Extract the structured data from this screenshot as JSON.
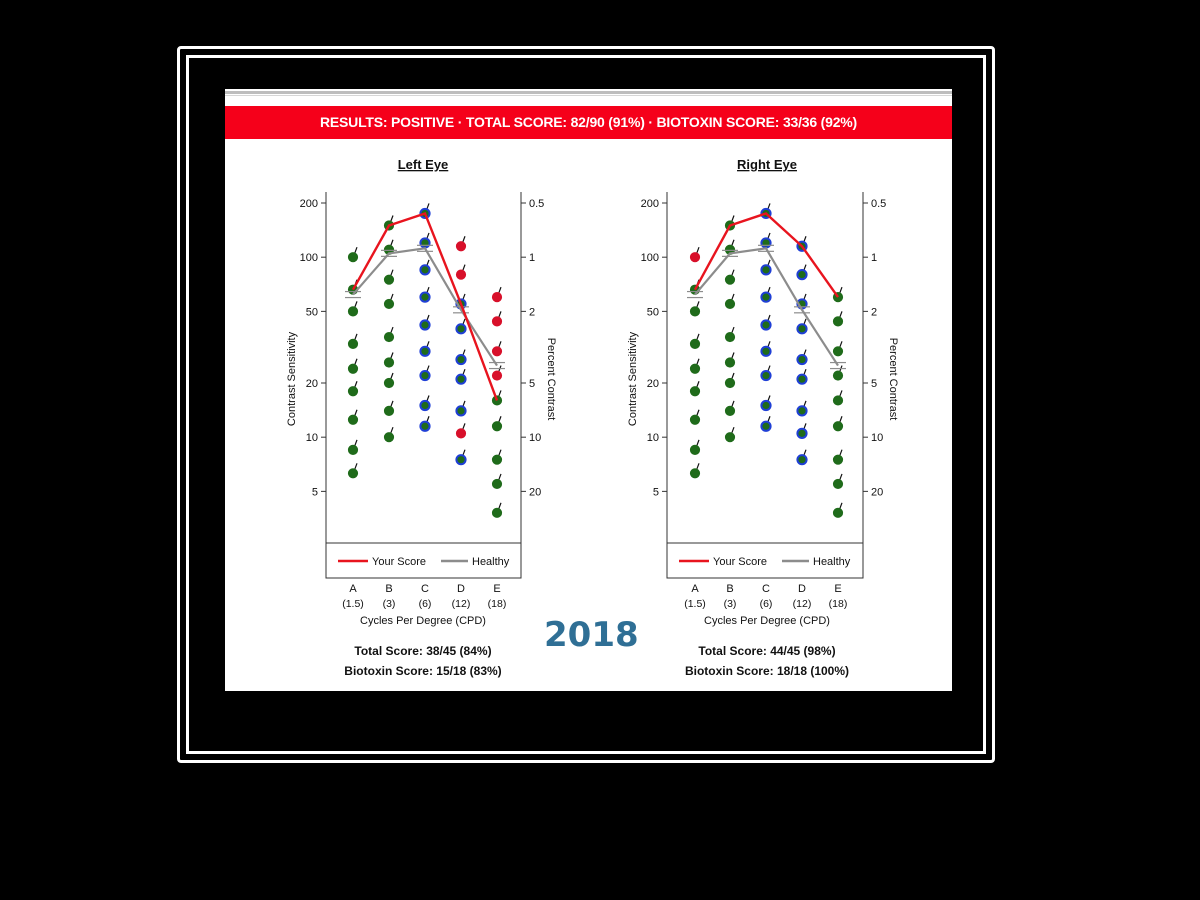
{
  "banner": {
    "text": "RESULTS:  POSITIVE  ·  TOTAL SCORE:  82/90 (91%)  ·  BIOTOXIN SCORE:  33/36 (92%)",
    "color": "#f5001a"
  },
  "year_label": "2018",
  "year_color": "#2f6f95",
  "axes": {
    "left_label": "Contrast Sensitivity",
    "right_label": "Percent Contrast",
    "x_label": "Cycles Per Degree (CPD)",
    "left_ticks": [
      "200",
      "100",
      "50",
      "20",
      "10",
      "5"
    ],
    "right_ticks": [
      "0.5",
      "1",
      "2",
      "5",
      "10",
      "20"
    ],
    "categories": [
      "A",
      "B",
      "C",
      "D",
      "E"
    ],
    "cpd": [
      "(1.5)",
      "(3)",
      "(6)",
      "(12)",
      "(18)"
    ]
  },
  "legend": {
    "your_score": "Your Score",
    "healthy": "Healthy"
  },
  "colors": {
    "your_score": "#e8141e",
    "healthy": "#8c8c8c",
    "dot_green": "#1f6b1a",
    "dot_blue_ring": "#1f3fd6",
    "dot_red": "#d8102a"
  },
  "panels": [
    {
      "title": "Left Eye",
      "total_score": "Total Score: 38/45 (84%)",
      "biotoxin_score": "Biotoxin Score: 15/18 (83%)"
    },
    {
      "title": "Right Eye",
      "total_score": "Total Score: 44/45 (98%)",
      "biotoxin_score": "Biotoxin Score: 18/18 (100%)"
    }
  ],
  "chart_data": [
    {
      "type": "line",
      "title": "Left Eye",
      "categories": [
        "A",
        "B",
        "C",
        "D",
        "E"
      ],
      "y_scale": "log",
      "ylim": [
        3,
        250
      ],
      "ylabel": "Contrast Sensitivity",
      "y2label": "Percent Contrast",
      "xlabel": "Cycles Per Degree (CPD)",
      "series": [
        {
          "name": "Your Score",
          "values": [
            66,
            150,
            175,
            55,
            16
          ]
        },
        {
          "name": "Healthy",
          "values": [
            62,
            105,
            112,
            51,
            25
          ]
        }
      ],
      "stimuli": [
        {
          "category": "A",
          "levels": [
            100,
            66,
            50,
            33,
            24,
            18,
            12.5,
            8.5,
            6.3
          ],
          "colors": [
            "green",
            "green",
            "green",
            "green",
            "green",
            "green",
            "green",
            "green",
            "green"
          ]
        },
        {
          "category": "B",
          "levels": [
            150,
            110,
            75,
            55,
            36,
            26,
            20,
            14,
            10
          ],
          "colors": [
            "green",
            "green",
            "green",
            "green",
            "green",
            "green",
            "green",
            "green",
            "green"
          ]
        },
        {
          "category": "C",
          "levels": [
            175,
            120,
            85,
            60,
            42,
            30,
            22,
            15,
            11.5
          ],
          "colors": [
            "blue",
            "blue",
            "blue",
            "blue",
            "blue",
            "blue",
            "blue",
            "blue",
            "blue"
          ]
        },
        {
          "category": "D",
          "levels": [
            115,
            80,
            55,
            40,
            27,
            21,
            14,
            10.5,
            7.5
          ],
          "colors": [
            "red",
            "red",
            "blue",
            "blue",
            "blue",
            "blue",
            "blue",
            "red",
            "blue"
          ]
        },
        {
          "category": "E",
          "levels": [
            60,
            44,
            30,
            22,
            16,
            11.5,
            7.5,
            5.5,
            3.8
          ],
          "colors": [
            "red",
            "red",
            "red",
            "red",
            "green",
            "green",
            "green",
            "green",
            "green"
          ]
        }
      ]
    },
    {
      "type": "line",
      "title": "Right Eye",
      "categories": [
        "A",
        "B",
        "C",
        "D",
        "E"
      ],
      "y_scale": "log",
      "ylim": [
        3,
        250
      ],
      "ylabel": "Contrast Sensitivity",
      "y2label": "Percent Contrast",
      "xlabel": "Cycles Per Degree (CPD)",
      "series": [
        {
          "name": "Your Score",
          "values": [
            66,
            150,
            175,
            115,
            60
          ]
        },
        {
          "name": "Healthy",
          "values": [
            62,
            105,
            112,
            51,
            25
          ]
        }
      ],
      "stimuli": [
        {
          "category": "A",
          "levels": [
            100,
            66,
            50,
            33,
            24,
            18,
            12.5,
            8.5,
            6.3
          ],
          "colors": [
            "red",
            "green",
            "green",
            "green",
            "green",
            "green",
            "green",
            "green",
            "green"
          ]
        },
        {
          "category": "B",
          "levels": [
            150,
            110,
            75,
            55,
            36,
            26,
            20,
            14,
            10
          ],
          "colors": [
            "green",
            "green",
            "green",
            "green",
            "green",
            "green",
            "green",
            "green",
            "green"
          ]
        },
        {
          "category": "C",
          "levels": [
            175,
            120,
            85,
            60,
            42,
            30,
            22,
            15,
            11.5
          ],
          "colors": [
            "blue",
            "blue",
            "blue",
            "blue",
            "blue",
            "blue",
            "blue",
            "blue",
            "blue"
          ]
        },
        {
          "category": "D",
          "levels": [
            115,
            80,
            55,
            40,
            27,
            21,
            14,
            10.5,
            7.5
          ],
          "colors": [
            "blue",
            "blue",
            "blue",
            "blue",
            "blue",
            "blue",
            "blue",
            "blue",
            "blue"
          ]
        },
        {
          "category": "E",
          "levels": [
            60,
            44,
            30,
            22,
            16,
            11.5,
            7.5,
            5.5,
            3.8
          ],
          "colors": [
            "green",
            "green",
            "green",
            "green",
            "green",
            "green",
            "green",
            "green",
            "green"
          ]
        }
      ]
    }
  ]
}
